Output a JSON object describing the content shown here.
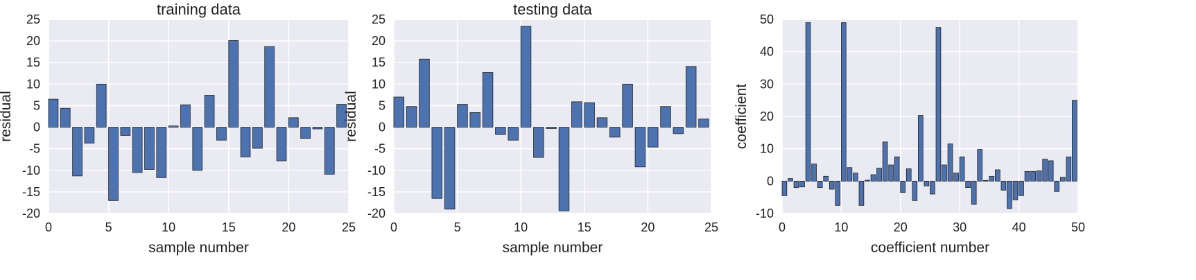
{
  "chart_data": [
    {
      "type": "bar",
      "title": "training data",
      "xlabel": "sample number",
      "ylabel": "residual",
      "xlim": [
        0,
        25
      ],
      "ylim": [
        -20,
        25
      ],
      "xticks": [
        0,
        5,
        10,
        15,
        20,
        25
      ],
      "yticks": [
        -20,
        -15,
        -10,
        -5,
        0,
        5,
        10,
        15,
        20,
        25
      ],
      "grid": true,
      "x": [
        0,
        1,
        2,
        3,
        4,
        5,
        6,
        7,
        8,
        9,
        10,
        11,
        12,
        13,
        14,
        15,
        16,
        17,
        18,
        19,
        20,
        21,
        22,
        23,
        24
      ],
      "values": [
        6.5,
        4.4,
        -11.3,
        -3.7,
        10.0,
        -17.0,
        -1.9,
        -10.5,
        -9.8,
        -11.7,
        0.3,
        5.2,
        -10.0,
        7.4,
        -3.0,
        20.1,
        -6.9,
        -4.9,
        18.7,
        -7.8,
        2.2,
        -2.6,
        -0.4,
        -10.9,
        5.3
      ],
      "color": "#4C72B0"
    },
    {
      "type": "bar",
      "title": "testing data",
      "xlabel": "sample number",
      "ylabel": "residual",
      "xlim": [
        0,
        25
      ],
      "ylim": [
        -20,
        25
      ],
      "xticks": [
        0,
        5,
        10,
        15,
        20,
        25
      ],
      "yticks": [
        -20,
        -15,
        -10,
        -5,
        0,
        5,
        10,
        15,
        20,
        25
      ],
      "grid": true,
      "x": [
        0,
        1,
        2,
        3,
        4,
        5,
        6,
        7,
        8,
        9,
        10,
        11,
        12,
        13,
        14,
        15,
        16,
        17,
        18,
        19,
        20,
        21,
        22,
        23,
        24
      ],
      "values": [
        7.0,
        4.8,
        15.8,
        -16.5,
        -19.0,
        5.3,
        3.4,
        12.7,
        -1.7,
        -3.0,
        23.4,
        -7.0,
        -0.3,
        -19.4,
        5.9,
        5.7,
        2.2,
        -2.3,
        10.0,
        -9.2,
        -4.6,
        4.8,
        -1.5,
        14.1,
        1.9
      ],
      "color": "#4C72B0"
    },
    {
      "type": "bar",
      "title": "",
      "xlabel": "coefficient number",
      "ylabel": "coefficient",
      "xlim": [
        0,
        50
      ],
      "ylim": [
        -10,
        50
      ],
      "xticks": [
        0,
        10,
        20,
        30,
        40,
        50
      ],
      "yticks": [
        -10,
        0,
        10,
        20,
        30,
        40,
        50
      ],
      "grid": true,
      "x": [
        0,
        1,
        2,
        3,
        4,
        5,
        6,
        7,
        8,
        9,
        10,
        11,
        12,
        13,
        14,
        15,
        16,
        17,
        18,
        19,
        20,
        21,
        22,
        23,
        24,
        25,
        26,
        27,
        28,
        29,
        30,
        31,
        32,
        33,
        34,
        35,
        36,
        37,
        38,
        39,
        40,
        41,
        42,
        43,
        44,
        45,
        46,
        47,
        48,
        49
      ],
      "values": [
        -4.5,
        0.8,
        -2.0,
        -1.8,
        49.0,
        5.3,
        -2.0,
        1.5,
        -2.5,
        -7.5,
        49.0,
        4.2,
        2.5,
        -7.5,
        0.3,
        2.0,
        4.0,
        12.1,
        5.0,
        7.5,
        -3.5,
        3.8,
        -6.0,
        20.3,
        -1.5,
        -4.0,
        47.5,
        5.0,
        11.5,
        2.5,
        7.5,
        -2.0,
        -7.2,
        9.8,
        0.2,
        1.5,
        3.5,
        -2.8,
        -8.5,
        -5.8,
        -4.5,
        3.0,
        3.0,
        3.2,
        6.8,
        6.3,
        -3.2,
        1.2,
        7.5,
        25.0
      ],
      "color": "#4C72B0"
    }
  ]
}
